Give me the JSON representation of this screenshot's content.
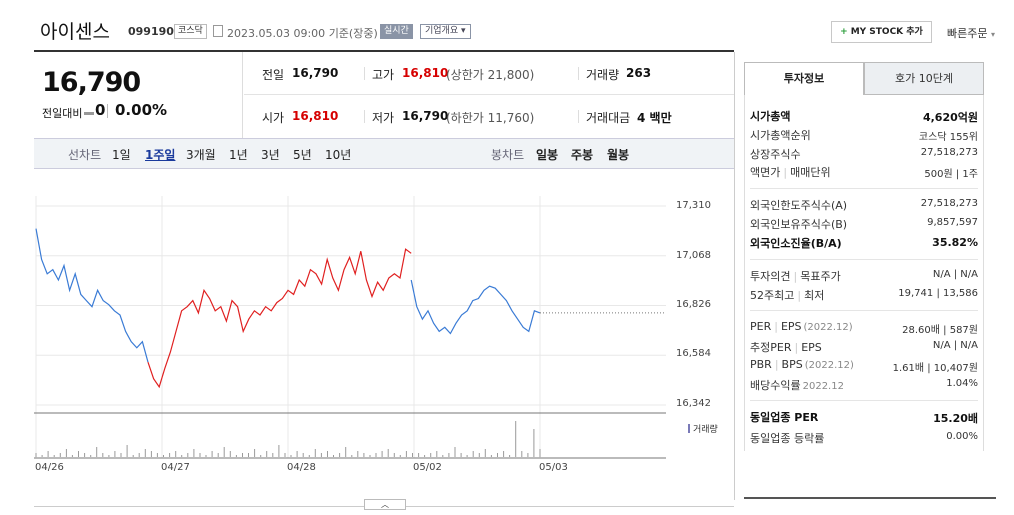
{
  "header": {
    "name": "아이센스",
    "code": "099190",
    "market": "코스닥",
    "datetime": "2023.05.03 09:00",
    "basis": "기준(장중)",
    "live": "실시간",
    "company_overview": "기업개요",
    "my_stock": "MY STOCK 추가",
    "quick_order": "빠른주문"
  },
  "quote": {
    "price": "16,790",
    "change_label": "전일대비",
    "change_value": "0",
    "change_pct": "0.00%"
  },
  "details": {
    "prev_label": "전일",
    "prev": "16,790",
    "high_label": "고가",
    "high": "16,810",
    "upper_limit": "(상한가 21,800)",
    "volume_label": "거래량",
    "volume": "263",
    "open_label": "시가",
    "open": "16,810",
    "low_label": "저가",
    "low": "16,790",
    "lower_limit": "(하한가 11,760)",
    "amount_label": "거래대금",
    "amount": "4 백만"
  },
  "line_tabs": {
    "label": "선차트",
    "items": [
      "1일",
      "1주일",
      "3개월",
      "1년",
      "3년",
      "5년",
      "10년"
    ],
    "active": "1주일"
  },
  "candle_tabs": {
    "label": "봉차트",
    "items": [
      "일봉",
      "주봉",
      "월봉"
    ]
  },
  "chart_data": {
    "type": "line",
    "title": "",
    "ylim": [
      16342,
      17310
    ],
    "y_ticks": [
      "17,310",
      "17,068",
      "16,826",
      "16,584",
      "16,342"
    ],
    "x_ticks": [
      "04/26",
      "04/27",
      "04/28",
      "05/02",
      "05/03"
    ],
    "reference_price": 16790,
    "series": [
      {
        "color": "#3a7bd5",
        "values": [
          17200,
          17050,
          16980,
          17000,
          16950,
          17020,
          16900,
          16980,
          16880,
          16850,
          16820,
          16900,
          16850,
          16830,
          16800,
          16780,
          16700,
          16650,
          16620,
          16650,
          16550
        ]
      },
      {
        "color": "#e02020",
        "values": [
          16550,
          16470,
          16430,
          16520,
          16600,
          16700,
          16800,
          16820,
          16850,
          16790,
          16900,
          16860,
          16800,
          16820,
          16750,
          16850,
          16820,
          16700,
          16760,
          16800,
          16780,
          16820,
          16800,
          16840,
          16860,
          16900,
          16880,
          16950,
          16920,
          17000,
          16980,
          16930,
          17050,
          16960,
          16900,
          17000,
          17060,
          16980,
          17090,
          16950,
          16870,
          16940,
          16900,
          16960,
          16980,
          16960,
          17100,
          17080
        ]
      },
      {
        "color": "#3a7bd5",
        "values": [
          16950,
          16820,
          16760,
          16800,
          16740,
          16700,
          16720,
          16690,
          16740,
          16780,
          16800,
          16850,
          16860,
          16900,
          16920,
          16910,
          16880,
          16850,
          16800,
          16760,
          16720,
          16700,
          16800,
          16790
        ]
      }
    ],
    "volume": [
      2,
      1,
      3,
      1,
      2,
      4,
      1,
      3,
      2,
      1,
      5,
      2,
      1,
      3,
      2,
      6,
      1,
      2,
      4,
      3,
      2,
      1,
      2,
      3,
      1,
      2,
      4,
      2,
      1,
      3,
      2,
      5,
      3,
      1,
      2,
      2,
      4,
      1,
      3,
      2,
      6,
      2,
      1,
      3,
      2,
      1,
      4,
      2,
      3,
      1,
      2,
      5,
      1,
      3,
      2,
      1,
      2,
      3,
      4,
      2,
      1,
      3,
      2,
      2,
      1,
      2,
      3,
      1,
      2,
      5,
      2,
      1,
      3,
      2,
      4,
      1,
      2,
      3,
      1,
      18,
      3,
      2,
      14,
      4
    ],
    "volume_label": "거래량"
  },
  "side": {
    "tabs": [
      "투자정보",
      "호가 10단계"
    ],
    "rows": [
      {
        "label": "시가총액",
        "value": "4,620억원",
        "bold": true
      },
      {
        "label": "시가총액순위",
        "value": "코스닥 155위"
      },
      {
        "label": "상장주식수",
        "value": "27,518,273"
      },
      {
        "label": "액면가",
        "label2": "매매단위",
        "value": "500원",
        "value2": "1주"
      },
      {
        "label": "외국인한도주식수(A)",
        "value": "27,518,273"
      },
      {
        "label": "외국인보유주식수(B)",
        "value": "9,857,597"
      },
      {
        "label": "외국인소진율(B/A)",
        "value": "35.82%",
        "bold": true
      },
      {
        "label": "투자의견",
        "label2": "목표주가",
        "value": "N/A",
        "value2": "N/A"
      },
      {
        "label": "52주최고",
        "label2": "최저",
        "value": "19,741",
        "value2": "13,586"
      },
      {
        "label": "PER",
        "label2": "EPS",
        "note": "(2022.12)",
        "value": "28.60배",
        "value2": "587원"
      },
      {
        "label": "추정PER",
        "label2": "EPS",
        "value": "N/A",
        "value2": "N/A"
      },
      {
        "label": "PBR",
        "label2": "BPS",
        "note": "(2022.12)",
        "value": "1.61배",
        "value2": "10,407원"
      },
      {
        "label": "배당수익률",
        "note": "2022.12",
        "value": "1.04%"
      },
      {
        "label": "동일업종 PER",
        "value": "15.20배",
        "bold": true
      },
      {
        "label": "동일업종 등락률",
        "value": "0.00%"
      }
    ]
  },
  "collapse_icon": "chevron-up-icon"
}
